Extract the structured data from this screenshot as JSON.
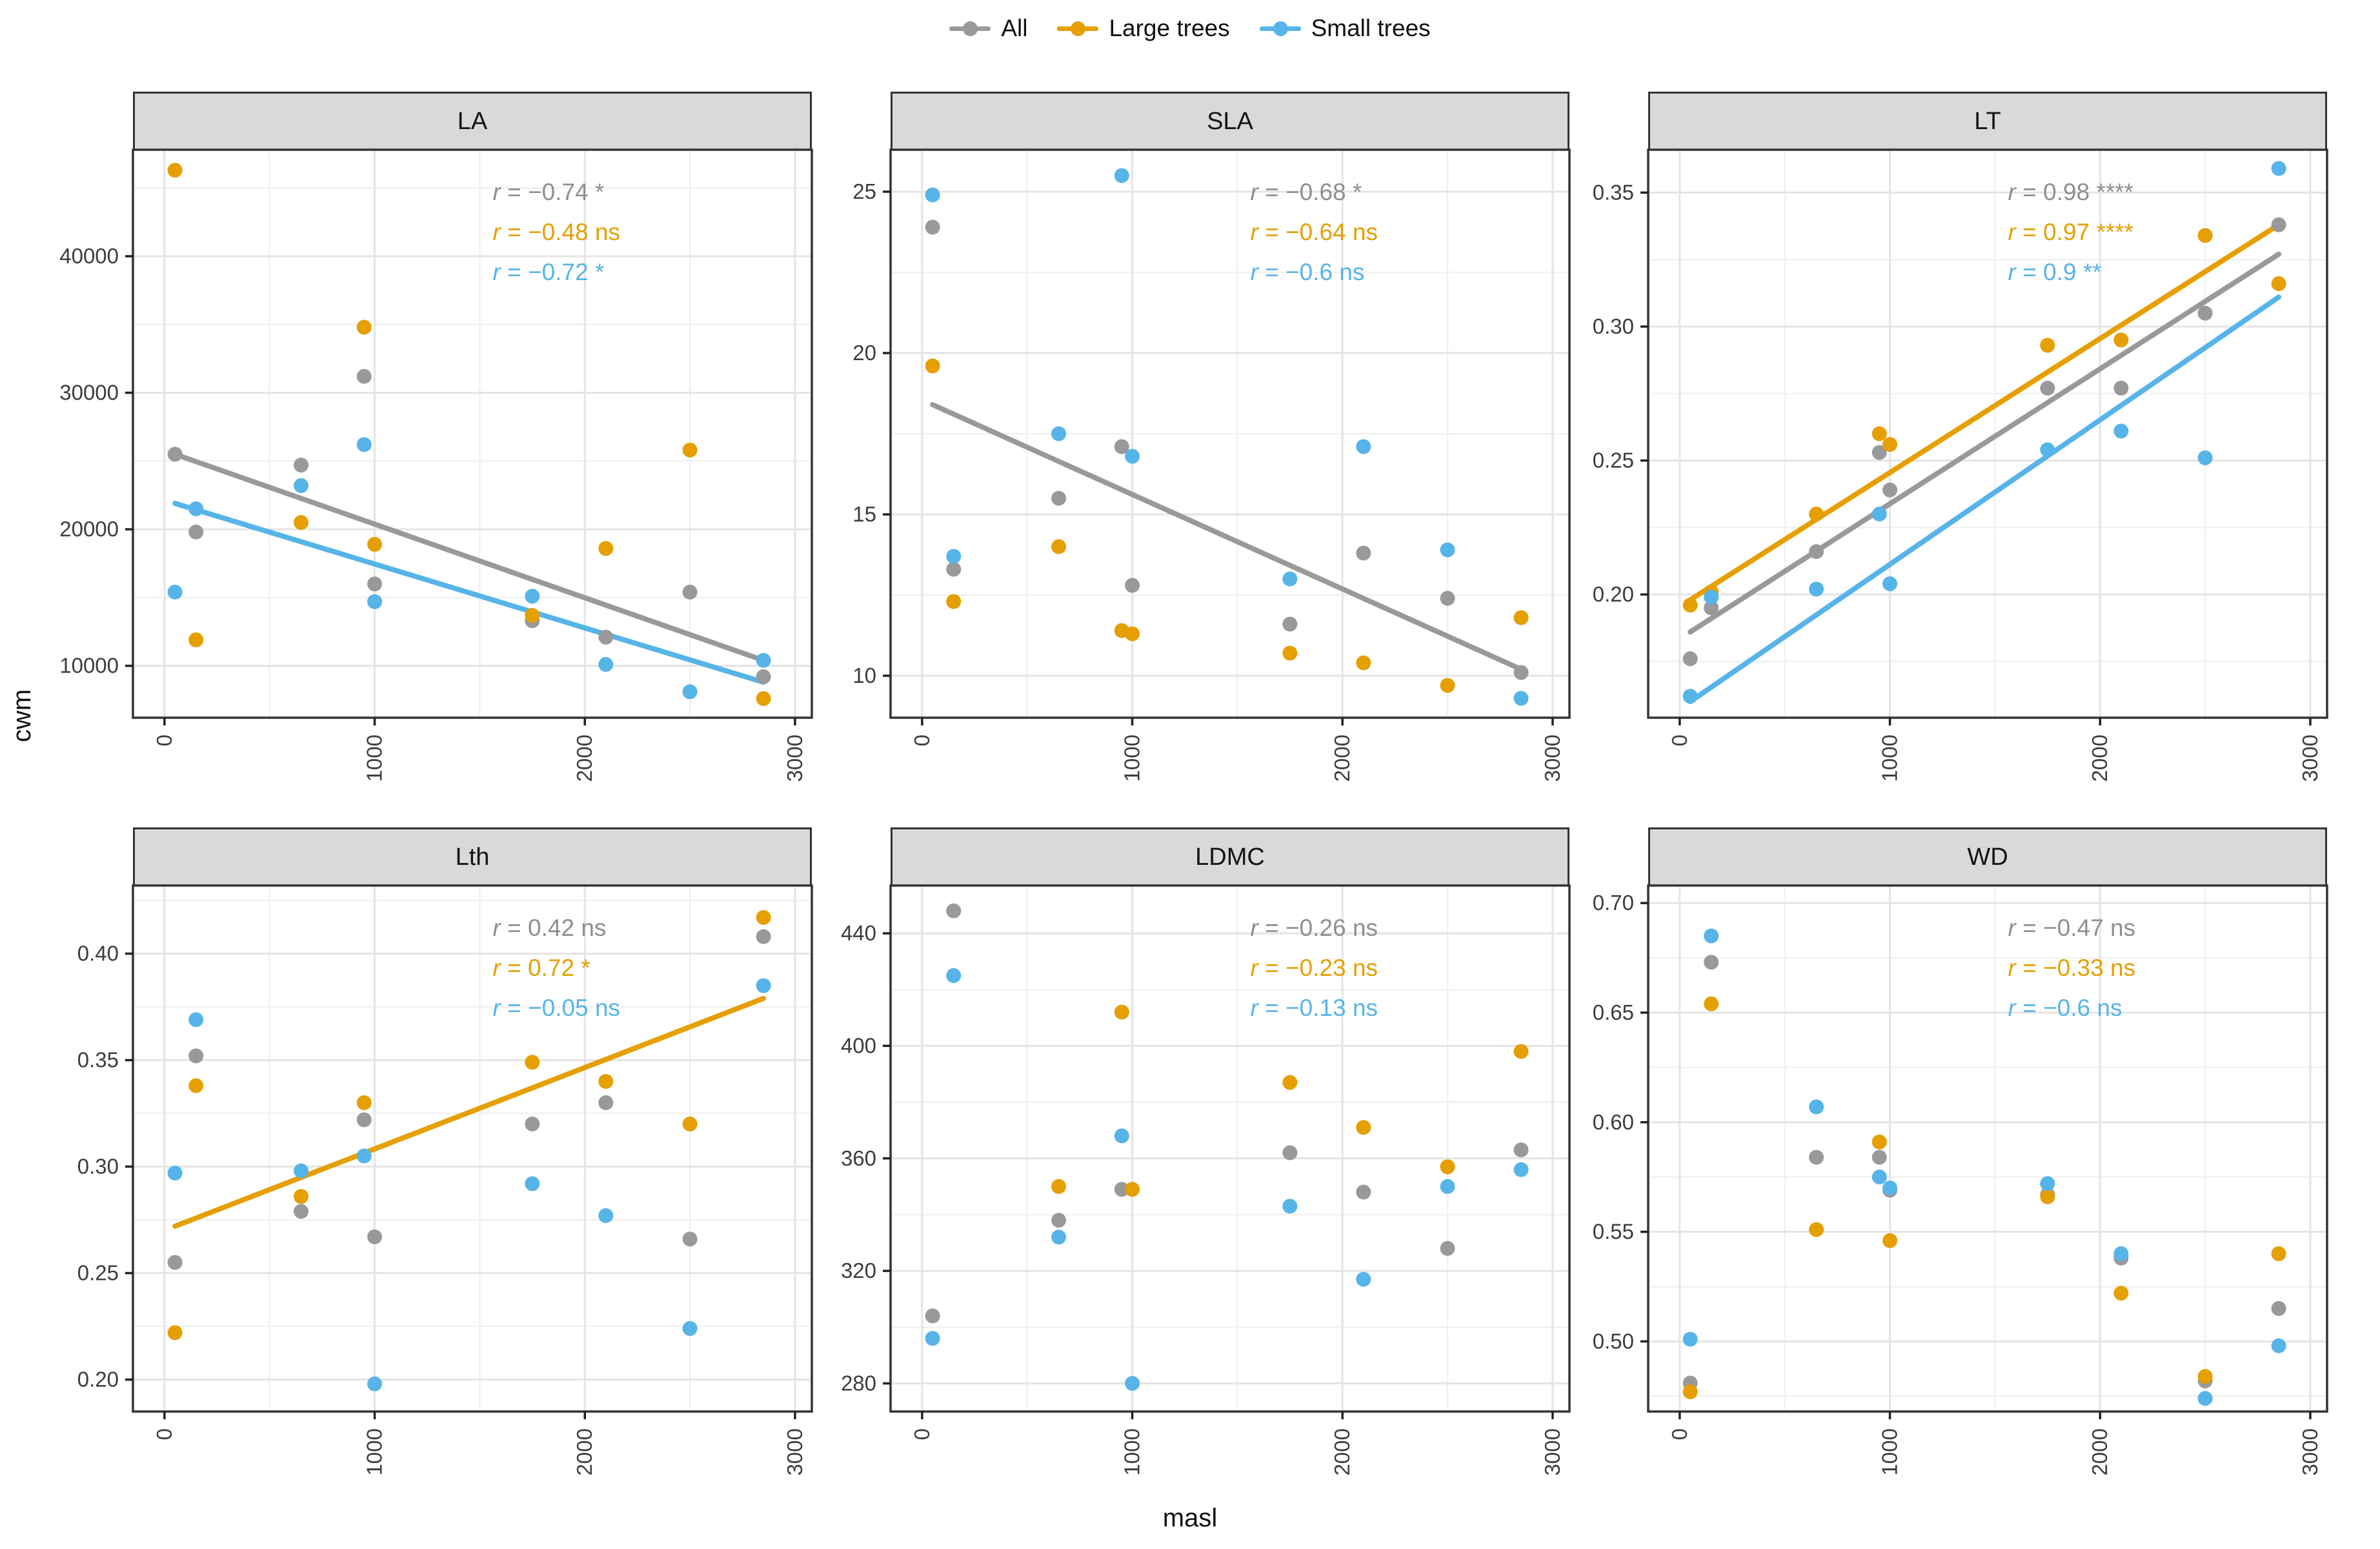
{
  "legend": {
    "items": [
      {
        "id": "all",
        "label": "All",
        "color": "#999999"
      },
      {
        "id": "large",
        "label": "Large trees",
        "color": "#E69F00"
      },
      {
        "id": "small",
        "label": "Small trees",
        "color": "#56B4E9"
      }
    ]
  },
  "axes": {
    "x_title": "masl",
    "y_title": "cwm",
    "x_ticks": [
      0,
      1000,
      2000,
      3000
    ],
    "x_tick_labels": [
      "0",
      "1000",
      "2000",
      "3000"
    ],
    "x_range": [
      -150,
      3080
    ]
  },
  "chart_data": [
    {
      "type": "scatter",
      "title": "LA",
      "row": 1,
      "col": 1,
      "ylim": [
        6200,
        47800
      ],
      "yticks": [
        10000,
        20000,
        30000,
        40000
      ],
      "ytick_labels": [
        "10000",
        "20000",
        "30000",
        "40000"
      ],
      "annotations": [
        {
          "series": "all",
          "text": "r = −0.74 *"
        },
        {
          "series": "large",
          "text": "r = −0.48 ns"
        },
        {
          "series": "small",
          "text": "r = −0.72 *"
        }
      ],
      "series": {
        "all": [
          [
            50,
            25500
          ],
          [
            150,
            19800
          ],
          [
            650,
            24700
          ],
          [
            950,
            31200
          ],
          [
            1000,
            16000
          ],
          [
            1750,
            13300
          ],
          [
            2100,
            12100
          ],
          [
            2500,
            15400
          ],
          [
            2850,
            9200
          ]
        ],
        "large": [
          [
            50,
            46300
          ],
          [
            150,
            11900
          ],
          [
            650,
            20500
          ],
          [
            950,
            34800
          ],
          [
            1000,
            18900
          ],
          [
            1750,
            13700
          ],
          [
            2100,
            18600
          ],
          [
            2500,
            25800
          ],
          [
            2850,
            7600
          ]
        ],
        "small": [
          [
            50,
            15400
          ],
          [
            150,
            21500
          ],
          [
            650,
            23200
          ],
          [
            950,
            26200
          ],
          [
            1000,
            14700
          ],
          [
            1750,
            15100
          ],
          [
            2100,
            10100
          ],
          [
            2500,
            8100
          ],
          [
            2850,
            10400
          ]
        ]
      },
      "reg_lines": [
        {
          "series": "all",
          "x1": 50,
          "y1": 25500,
          "x2": 2850,
          "y2": 10400
        },
        {
          "series": "small",
          "x1": 50,
          "y1": 21900,
          "x2": 2850,
          "y2": 8800
        }
      ]
    },
    {
      "type": "scatter",
      "title": "SLA",
      "row": 1,
      "col": 2,
      "ylim": [
        8.7,
        26.3
      ],
      "yticks": [
        10,
        15,
        20,
        25
      ],
      "ytick_labels": [
        "10",
        "15",
        "20",
        "25"
      ],
      "annotations": [
        {
          "series": "all",
          "text": "r = −0.68 *"
        },
        {
          "series": "large",
          "text": "r = −0.64 ns"
        },
        {
          "series": "small",
          "text": "r = −0.6 ns"
        }
      ],
      "series": {
        "all": [
          [
            50,
            23.9
          ],
          [
            150,
            13.3
          ],
          [
            650,
            15.5
          ],
          [
            950,
            17.1
          ],
          [
            1000,
            12.8
          ],
          [
            1750,
            11.6
          ],
          [
            2100,
            13.8
          ],
          [
            2500,
            12.4
          ],
          [
            2850,
            10.1
          ]
        ],
        "large": [
          [
            50,
            19.6
          ],
          [
            150,
            12.3
          ],
          [
            650,
            14.0
          ],
          [
            950,
            11.4
          ],
          [
            1000,
            11.3
          ],
          [
            1750,
            10.7
          ],
          [
            2100,
            10.4
          ],
          [
            2500,
            9.7
          ],
          [
            2850,
            11.8
          ]
        ],
        "small": [
          [
            50,
            24.9
          ],
          [
            150,
            13.7
          ],
          [
            650,
            17.5
          ],
          [
            950,
            25.5
          ],
          [
            1000,
            16.8
          ],
          [
            1750,
            13.0
          ],
          [
            2100,
            17.1
          ],
          [
            2500,
            13.9
          ],
          [
            2850,
            9.3
          ]
        ]
      },
      "reg_lines": [
        {
          "series": "all",
          "x1": 50,
          "y1": 18.4,
          "x2": 2850,
          "y2": 10.2
        }
      ]
    },
    {
      "type": "scatter",
      "title": "LT",
      "row": 1,
      "col": 3,
      "ylim": [
        0.154,
        0.366
      ],
      "yticks": [
        0.2,
        0.25,
        0.3,
        0.35
      ],
      "ytick_labels": [
        "0.20",
        "0.25",
        "0.30",
        "0.35"
      ],
      "annotations": [
        {
          "series": "all",
          "text": "r = 0.98 ****"
        },
        {
          "series": "large",
          "text": "r = 0.97 ****"
        },
        {
          "series": "small",
          "text": "r = 0.9 **"
        }
      ],
      "series": {
        "all": [
          [
            50,
            0.176
          ],
          [
            150,
            0.195
          ],
          [
            650,
            0.216
          ],
          [
            950,
            0.253
          ],
          [
            1000,
            0.239
          ],
          [
            1750,
            0.277
          ],
          [
            2100,
            0.277
          ],
          [
            2500,
            0.305
          ],
          [
            2850,
            0.338
          ]
        ],
        "large": [
          [
            50,
            0.196
          ],
          [
            150,
            0.201
          ],
          [
            650,
            0.23
          ],
          [
            950,
            0.26
          ],
          [
            1000,
            0.256
          ],
          [
            1750,
            0.293
          ],
          [
            2100,
            0.295
          ],
          [
            2500,
            0.334
          ],
          [
            2850,
            0.316
          ]
        ],
        "small": [
          [
            50,
            0.162
          ],
          [
            150,
            0.199
          ],
          [
            650,
            0.202
          ],
          [
            950,
            0.23
          ],
          [
            1000,
            0.204
          ],
          [
            1750,
            0.254
          ],
          [
            2100,
            0.261
          ],
          [
            2500,
            0.251
          ],
          [
            2850,
            0.359
          ]
        ]
      },
      "reg_lines": [
        {
          "series": "large",
          "x1": 50,
          "y1": 0.198,
          "x2": 2850,
          "y2": 0.338
        },
        {
          "series": "all",
          "x1": 50,
          "y1": 0.186,
          "x2": 2850,
          "y2": 0.327
        },
        {
          "series": "small",
          "x1": 50,
          "y1": 0.16,
          "x2": 2850,
          "y2": 0.311
        }
      ]
    },
    {
      "type": "scatter",
      "title": "Lth",
      "row": 2,
      "col": 1,
      "ylim": [
        0.185,
        0.432
      ],
      "yticks": [
        0.2,
        0.25,
        0.3,
        0.35,
        0.4
      ],
      "ytick_labels": [
        "0.20",
        "0.25",
        "0.30",
        "0.35",
        "0.40"
      ],
      "annotations": [
        {
          "series": "all",
          "text": "r = 0.42 ns"
        },
        {
          "series": "large",
          "text": "r = 0.72 *"
        },
        {
          "series": "small",
          "text": "r = −0.05 ns"
        }
      ],
      "series": {
        "all": [
          [
            50,
            0.255
          ],
          [
            150,
            0.352
          ],
          [
            650,
            0.279
          ],
          [
            950,
            0.322
          ],
          [
            1000,
            0.267
          ],
          [
            1750,
            0.32
          ],
          [
            2100,
            0.33
          ],
          [
            2500,
            0.266
          ],
          [
            2850,
            0.408
          ]
        ],
        "large": [
          [
            50,
            0.222
          ],
          [
            150,
            0.338
          ],
          [
            650,
            0.286
          ],
          [
            950,
            0.33
          ],
          [
            1750,
            0.349
          ],
          [
            2100,
            0.34
          ],
          [
            2500,
            0.32
          ],
          [
            2850,
            0.417
          ]
        ],
        "small": [
          [
            50,
            0.297
          ],
          [
            150,
            0.369
          ],
          [
            650,
            0.298
          ],
          [
            950,
            0.305
          ],
          [
            1000,
            0.198
          ],
          [
            1750,
            0.292
          ],
          [
            2100,
            0.277
          ],
          [
            2500,
            0.224
          ],
          [
            2850,
            0.385
          ]
        ]
      },
      "reg_lines": [
        {
          "series": "large",
          "x1": 50,
          "y1": 0.272,
          "x2": 2850,
          "y2": 0.379
        }
      ]
    },
    {
      "type": "scatter",
      "title": "LDMC",
      "row": 2,
      "col": 2,
      "ylim": [
        270,
        457
      ],
      "yticks": [
        280,
        320,
        360,
        400,
        440
      ],
      "ytick_labels": [
        "280",
        "320",
        "360",
        "400",
        "440"
      ],
      "annotations": [
        {
          "series": "all",
          "text": "r = −0.26 ns"
        },
        {
          "series": "large",
          "text": "r = −0.23 ns"
        },
        {
          "series": "small",
          "text": "r = −0.13 ns"
        }
      ],
      "series": {
        "all": [
          [
            50,
            304
          ],
          [
            150,
            448
          ],
          [
            650,
            338
          ],
          [
            950,
            349
          ],
          [
            1750,
            362
          ],
          [
            2100,
            348
          ],
          [
            2500,
            328
          ],
          [
            2850,
            363
          ]
        ],
        "large": [
          [
            650,
            350
          ],
          [
            950,
            412
          ],
          [
            1000,
            349
          ],
          [
            1750,
            387
          ],
          [
            2100,
            371
          ],
          [
            2500,
            357
          ],
          [
            2850,
            398
          ]
        ],
        "small": [
          [
            50,
            296
          ],
          [
            150,
            425
          ],
          [
            650,
            332
          ],
          [
            950,
            368
          ],
          [
            1000,
            280
          ],
          [
            1750,
            343
          ],
          [
            2100,
            317
          ],
          [
            2500,
            350
          ],
          [
            2850,
            356
          ]
        ]
      },
      "reg_lines": []
    },
    {
      "type": "scatter",
      "title": "WD",
      "row": 2,
      "col": 3,
      "ylim": [
        0.468,
        0.708
      ],
      "yticks": [
        0.5,
        0.55,
        0.6,
        0.65,
        0.7
      ],
      "ytick_labels": [
        "0.50",
        "0.55",
        "0.60",
        "0.65",
        "0.70"
      ],
      "annotations": [
        {
          "series": "all",
          "text": "r = −0.47 ns"
        },
        {
          "series": "large",
          "text": "r = −0.33 ns"
        },
        {
          "series": "small",
          "text": "r = −0.6 ns"
        }
      ],
      "series": {
        "all": [
          [
            50,
            0.481
          ],
          [
            150,
            0.673
          ],
          [
            650,
            0.584
          ],
          [
            950,
            0.584
          ],
          [
            1000,
            0.569
          ],
          [
            1750,
            0.567
          ],
          [
            2100,
            0.538
          ],
          [
            2500,
            0.482
          ],
          [
            2850,
            0.515
          ]
        ],
        "large": [
          [
            50,
            0.477
          ],
          [
            150,
            0.654
          ],
          [
            650,
            0.551
          ],
          [
            950,
            0.591
          ],
          [
            1000,
            0.546
          ],
          [
            1750,
            0.566
          ],
          [
            2100,
            0.522
          ],
          [
            2500,
            0.484
          ],
          [
            2850,
            0.54
          ]
        ],
        "small": [
          [
            50,
            0.501
          ],
          [
            150,
            0.685
          ],
          [
            650,
            0.607
          ],
          [
            950,
            0.575
          ],
          [
            1000,
            0.57
          ],
          [
            1750,
            0.572
          ],
          [
            2100,
            0.54
          ],
          [
            2500,
            0.474
          ],
          [
            2850,
            0.498
          ]
        ]
      },
      "reg_lines": []
    }
  ],
  "style": {
    "series_colors": {
      "all": "#999999",
      "large": "#E69F00",
      "small": "#56B4E9"
    },
    "annotation_colors": {
      "all": "#8f8f8f",
      "large": "#E69F00",
      "small": "#56B4E9"
    },
    "strip_bg": "#d9d9d9",
    "panel_border": "#333333",
    "grid_major": "#e4e4e4",
    "grid_minor": "#f1f1f1",
    "tick_text": "#3c3c3c"
  }
}
